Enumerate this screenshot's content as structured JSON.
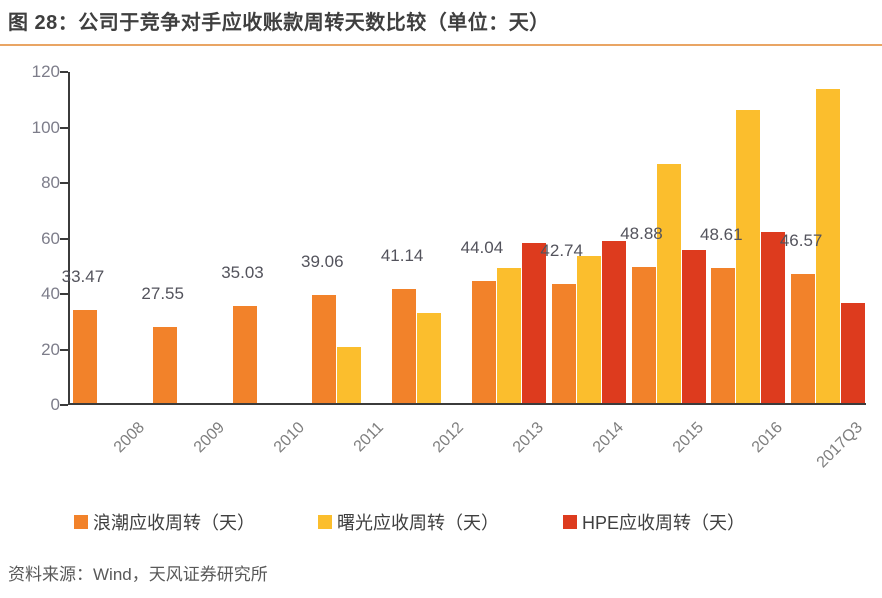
{
  "title": "图 28：公司于竞争对手应收账款周转天数比较（单位：天）",
  "source": "资料来源：Wind，天风证券研究所",
  "colors": {
    "inspur_orange": "#f2822a",
    "sugon_yellow": "#fbbe2d",
    "hpe_red": "#dd3b1e",
    "title_rule": "#e9a564",
    "axis_line": "#3b3b3b",
    "ytick_text": "#7d7d8a",
    "xtick_text": "#7e7e7e",
    "data_label_text": "#53535c",
    "legend_text": "#3f3f3f",
    "title_text": "#3f3f3f",
    "source_text": "#595959"
  },
  "chart_data": {
    "type": "bar",
    "title": "公司于竞争对手应收账款周转天数比较（单位：天）",
    "xlabel": "",
    "ylabel": "",
    "ylim": [
      0,
      120
    ],
    "yticks": [
      0,
      20,
      40,
      60,
      80,
      100,
      120
    ],
    "grid": false,
    "legend_position": "bottom",
    "categories": [
      "2008",
      "2009",
      "2010",
      "2011",
      "2012",
      "2013",
      "2014",
      "2015",
      "2016",
      "2017Q3"
    ],
    "series": [
      {
        "name": "浪潮应收周转（天）",
        "color": "#f2822a",
        "values": [
          33.47,
          27.55,
          35.03,
          39.06,
          41.14,
          44.04,
          42.74,
          48.88,
          48.61,
          46.57
        ],
        "data_labels": [
          "33.47",
          "27.55",
          "35.03",
          "39.06",
          "41.14",
          "44.04",
          "42.74",
          "48.88",
          "48.61",
          "46.57"
        ]
      },
      {
        "name": "曙光应收周转（天）",
        "color": "#fbbe2d",
        "values": [
          null,
          null,
          null,
          20.3,
          32.5,
          48.5,
          53.0,
          86.0,
          105.5,
          113.0
        ],
        "data_labels": null
      },
      {
        "name": "HPE应收周转（天）",
        "color": "#dd3b1e",
        "values": [
          null,
          null,
          null,
          null,
          null,
          57.5,
          58.5,
          55.0,
          61.5,
          36.0
        ],
        "data_labels": null
      }
    ]
  },
  "legend_x_positions": [
    74,
    318,
    563
  ]
}
